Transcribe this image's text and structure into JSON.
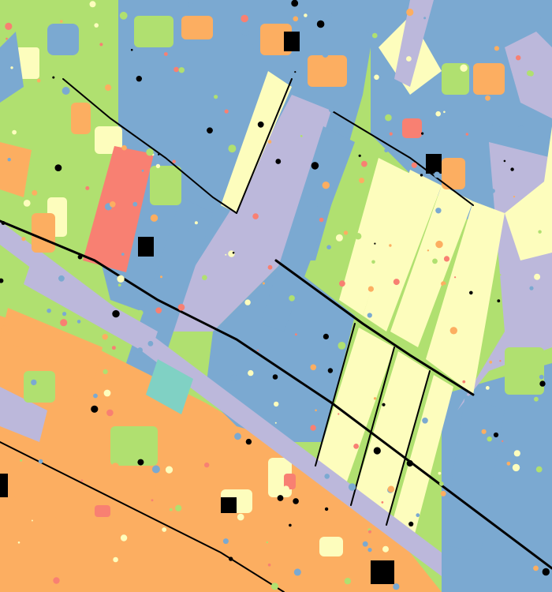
{
  "map": {
    "type": "land-cover segmentation",
    "palette": {
      "blue_parcels": "#7ba9d1",
      "cream_parcels": "#fdfdbd",
      "lavender_roads": "#bcb8db",
      "green_parcels": "#b0e070",
      "orange_parcels": "#fcae61",
      "salmon_parcels": "#f88072",
      "teal_parcels": "#80d1c4",
      "black_boundaries": "#000000"
    }
  }
}
